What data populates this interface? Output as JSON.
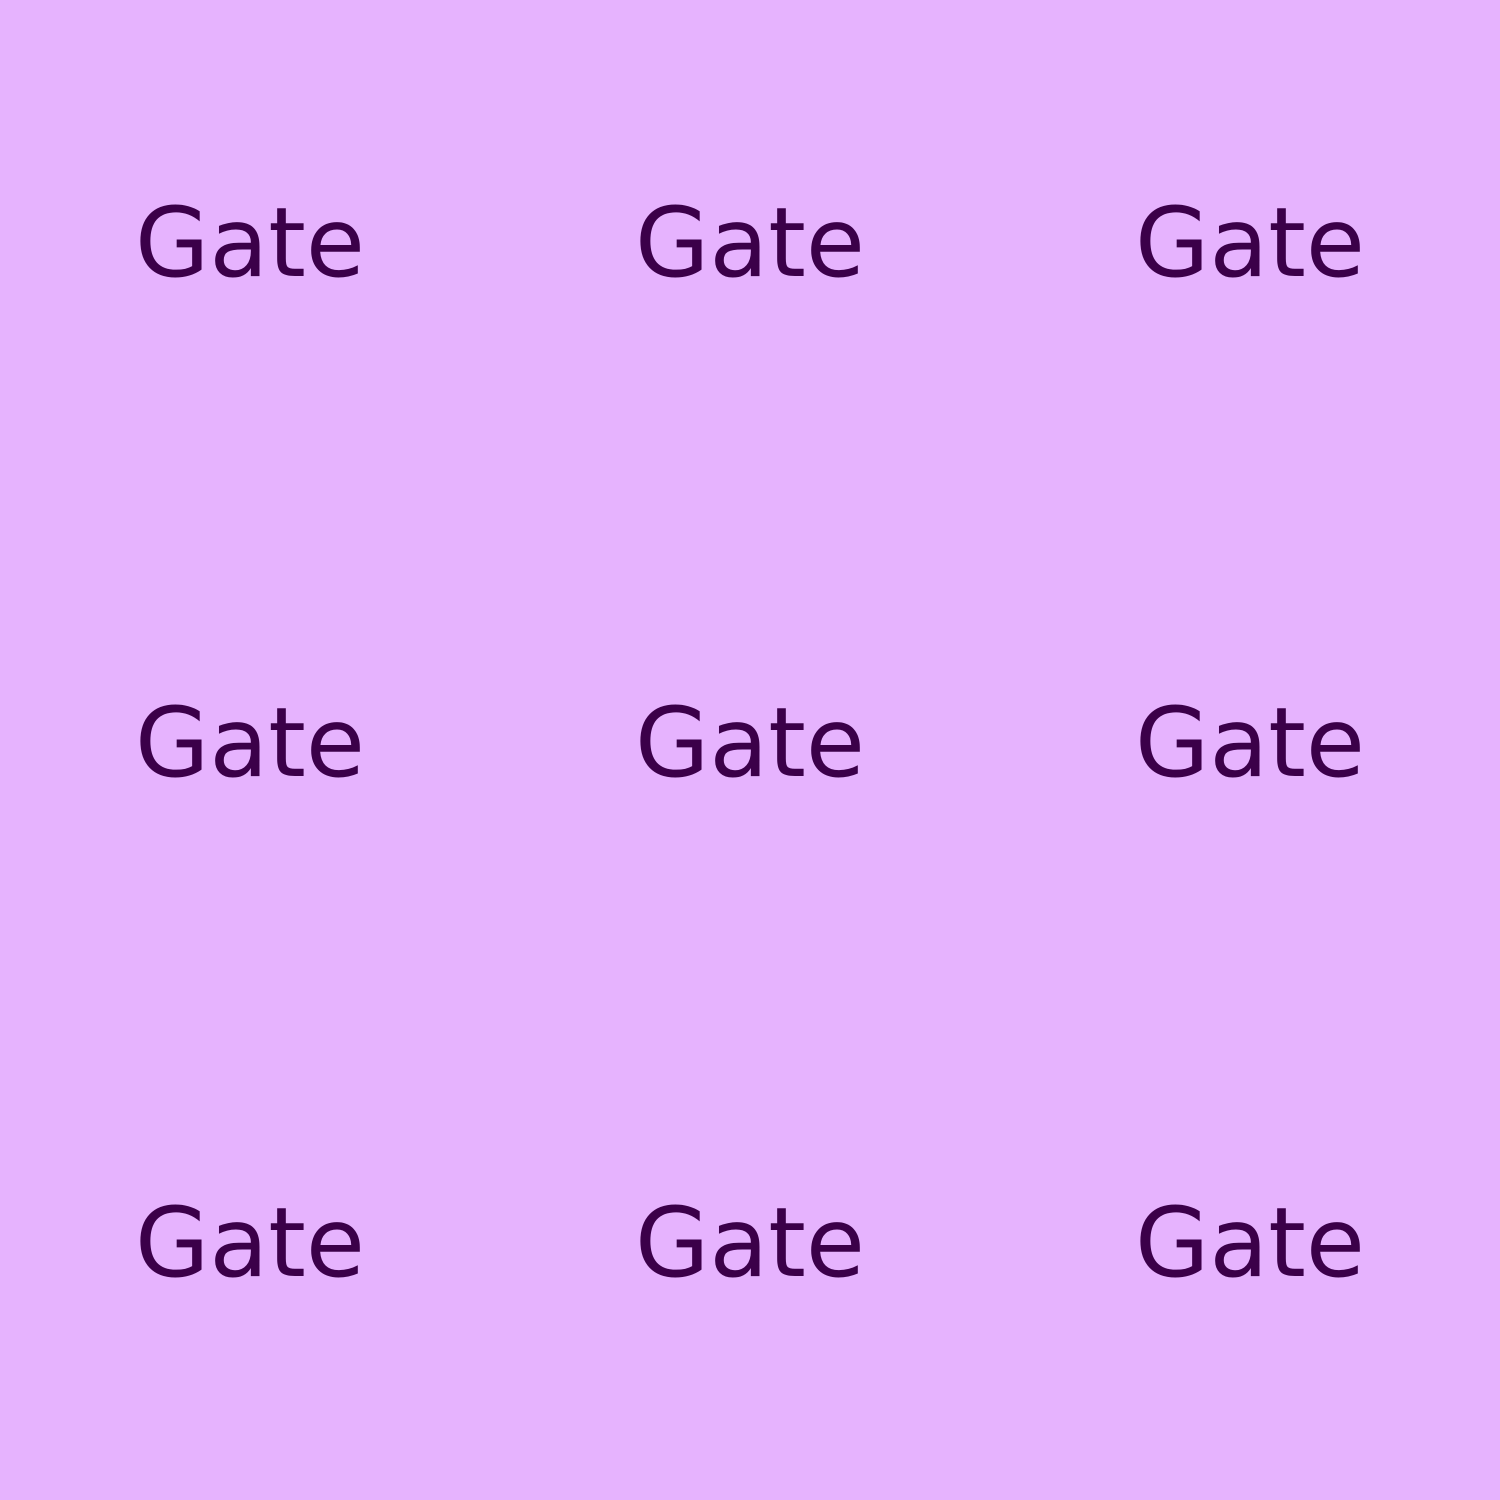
{
  "colors": {
    "background": "#e6b3fe",
    "text": "#3b0049"
  },
  "tiles": [
    {
      "label": "Gate"
    },
    {
      "label": "Gate"
    },
    {
      "label": "Gate"
    },
    {
      "label": "Gate"
    },
    {
      "label": "Gate"
    },
    {
      "label": "Gate"
    },
    {
      "label": "Gate"
    },
    {
      "label": "Gate"
    },
    {
      "label": "Gate"
    }
  ]
}
